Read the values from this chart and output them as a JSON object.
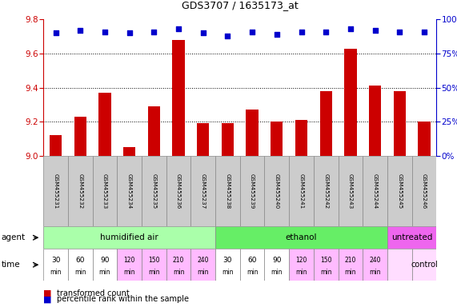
{
  "title": "GDS3707 / 1635173_at",
  "samples": [
    "GSM455231",
    "GSM455232",
    "GSM455233",
    "GSM455234",
    "GSM455235",
    "GSM455236",
    "GSM455237",
    "GSM455238",
    "GSM455239",
    "GSM455240",
    "GSM455241",
    "GSM455242",
    "GSM455243",
    "GSM455244",
    "GSM455245",
    "GSM455246"
  ],
  "transformed_count": [
    9.12,
    9.23,
    9.37,
    9.05,
    9.29,
    9.68,
    9.19,
    9.19,
    9.27,
    9.2,
    9.21,
    9.38,
    9.63,
    9.41,
    9.38,
    9.2
  ],
  "percentile_rank": [
    90,
    92,
    91,
    90,
    91,
    93,
    90,
    88,
    91,
    89,
    91,
    91,
    93,
    92,
    91,
    91
  ],
  "ylim": [
    9.0,
    9.8
  ],
  "y2lim": [
    0,
    100
  ],
  "yticks": [
    9.0,
    9.2,
    9.4,
    9.6,
    9.8
  ],
  "y2ticks": [
    0,
    25,
    50,
    75,
    100
  ],
  "bar_color": "#cc0000",
  "dot_color": "#0000cc",
  "agent_groups": [
    {
      "label": "humidified air",
      "start": 0,
      "end": 7,
      "color": "#aaffaa"
    },
    {
      "label": "ethanol",
      "start": 7,
      "end": 14,
      "color": "#66ee66"
    },
    {
      "label": "untreated",
      "start": 14,
      "end": 16,
      "color": "#ee66ee"
    }
  ],
  "time_labels_row1": [
    "30",
    "60",
    "90",
    "120",
    "150",
    "210",
    "240",
    "30",
    "60",
    "90",
    "120",
    "150",
    "210",
    "240",
    "",
    ""
  ],
  "time_labels_row2": [
    "min",
    "min",
    "min",
    "min",
    "min",
    "min",
    "min",
    "min",
    "min",
    "min",
    "min",
    "min",
    "min",
    "min",
    "",
    ""
  ],
  "time_colors": [
    "#ffffff",
    "#ffffff",
    "#ffffff",
    "#ffbbff",
    "#ffbbff",
    "#ffbbff",
    "#ffbbff",
    "#ffffff",
    "#ffffff",
    "#ffffff",
    "#ffbbff",
    "#ffbbff",
    "#ffbbff",
    "#ffbbff",
    "#ffddff",
    "#ffddff"
  ],
  "control_label": "control",
  "legend_bar_label": "transformed count",
  "legend_dot_label": "percentile rank within the sample",
  "agent_label": "agent",
  "time_label": "time",
  "background_color": "#ffffff",
  "sample_bg_color": "#cccccc",
  "plot_bg_color": "#ffffff"
}
